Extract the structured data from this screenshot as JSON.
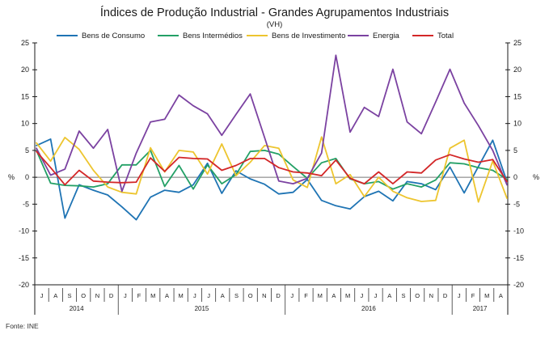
{
  "header": {
    "title": "Índices de Produção Industrial - Grandes Agrupamentos Industriais",
    "subtitle": "(VH)"
  },
  "source": "Fonte: INE",
  "colors": {
    "bens_consumo": "#1f74b4",
    "bens_intermedios": "#23a066",
    "bens_investimento": "#edc52f",
    "energia": "#7b42a1",
    "total": "#d32728",
    "axis": "#1a1a1a",
    "zero_line": "#777777",
    "text": "#1a1a1a"
  },
  "chart_data": {
    "type": "line",
    "title": "Índices de Produção Industrial - Grandes Agrupamentos Industriais",
    "subtitle": "(VH)",
    "ylabel": "%",
    "ylim": [
      -20,
      25
    ],
    "y_ticks": [
      25,
      20,
      15,
      10,
      5,
      0,
      -5,
      -10,
      -15,
      -20
    ],
    "grid": "zero-line-only",
    "legend_position": "top",
    "categories": [
      "J",
      "A",
      "S",
      "O",
      "N",
      "D",
      "J",
      "F",
      "M",
      "A",
      "M",
      "J",
      "J",
      "A",
      "S",
      "O",
      "N",
      "D",
      "J",
      "F",
      "M",
      "A",
      "M",
      "J",
      "J",
      "A",
      "S",
      "O",
      "N",
      "D",
      "J",
      "F",
      "M",
      "A"
    ],
    "years": [
      {
        "label": "2014",
        "start": 0,
        "span": 6
      },
      {
        "label": "2015",
        "start": 6,
        "span": 12
      },
      {
        "label": "2016",
        "start": 18,
        "span": 12
      },
      {
        "label": "2017",
        "start": 30,
        "span": 4
      }
    ],
    "series": [
      {
        "name": "Bens de Consumo",
        "color_key": "bens_consumo",
        "values": [
          5.9,
          7.1,
          -7.6,
          -1.4,
          -2.4,
          -3.3,
          -5.5,
          -7.9,
          -3.7,
          -2.4,
          -2.8,
          -1.4,
          2.6,
          -3.0,
          1.2,
          -0.3,
          -1.3,
          -3.1,
          -2.8,
          -0.4,
          -4.3,
          -5.3,
          -5.9,
          -3.6,
          -2.6,
          -4.4,
          -0.8,
          -1.2,
          -2.3,
          1.9,
          -2.9,
          2.0,
          6.9,
          -0.8
        ]
      },
      {
        "name": "Bens Intermédios",
        "color_key": "bens_intermedios",
        "values": [
          5.0,
          -1.1,
          -1.5,
          -1.6,
          -1.8,
          -1.2,
          2.3,
          2.3,
          5.0,
          -1.7,
          2.2,
          -2.2,
          2.3,
          -1.2,
          0.5,
          4.8,
          5.0,
          4.3,
          2.0,
          -0.2,
          2.7,
          3.5,
          -0.3,
          -1.2,
          -0.8,
          -2.2,
          -1.2,
          -1.8,
          -0.5,
          2.7,
          2.5,
          1.8,
          1.3,
          -0.4
        ]
      },
      {
        "name": "Bens de Investimento",
        "color_key": "bens_investimento",
        "values": [
          6.4,
          3.0,
          7.4,
          5.2,
          1.3,
          -1.8,
          -2.8,
          -3.1,
          5.5,
          1.0,
          5.0,
          4.7,
          0.6,
          6.2,
          0.3,
          2.8,
          5.9,
          5.4,
          -0.5,
          -1.9,
          7.5,
          -1.2,
          0.5,
          -3.6,
          0.0,
          -2.6,
          -3.8,
          -4.5,
          -4.3,
          5.4,
          6.9,
          -4.6,
          3.0,
          -3.9
        ]
      },
      {
        "name": "Energia",
        "color_key": "energia",
        "values": [
          5.4,
          0.4,
          1.5,
          8.6,
          5.4,
          8.9,
          -2.6,
          4.5,
          10.3,
          10.8,
          15.3,
          13.3,
          11.8,
          7.8,
          11.7,
          15.5,
          7.4,
          -0.7,
          -1.2,
          -0.2,
          4.5,
          22.7,
          8.4,
          13.0,
          11.3,
          20.1,
          10.3,
          8.1,
          14.0,
          20.1,
          13.8,
          9.6,
          5.0,
          -1.4
        ]
      },
      {
        "name": "Total",
        "color_key": "total",
        "values": [
          4.8,
          1.8,
          -1.4,
          1.3,
          -0.7,
          -0.9,
          -1.0,
          -0.9,
          3.6,
          1.1,
          3.7,
          3.5,
          3.4,
          1.3,
          2.2,
          3.5,
          3.5,
          1.8,
          1.0,
          0.8,
          0.3,
          3.2,
          -0.2,
          -1.2,
          1.0,
          -1.2,
          1.0,
          0.8,
          3.2,
          4.2,
          3.4,
          2.8,
          3.3,
          -0.8
        ]
      }
    ],
    "legend_x_positions": [
      70,
      195,
      305,
      430,
      510
    ]
  }
}
